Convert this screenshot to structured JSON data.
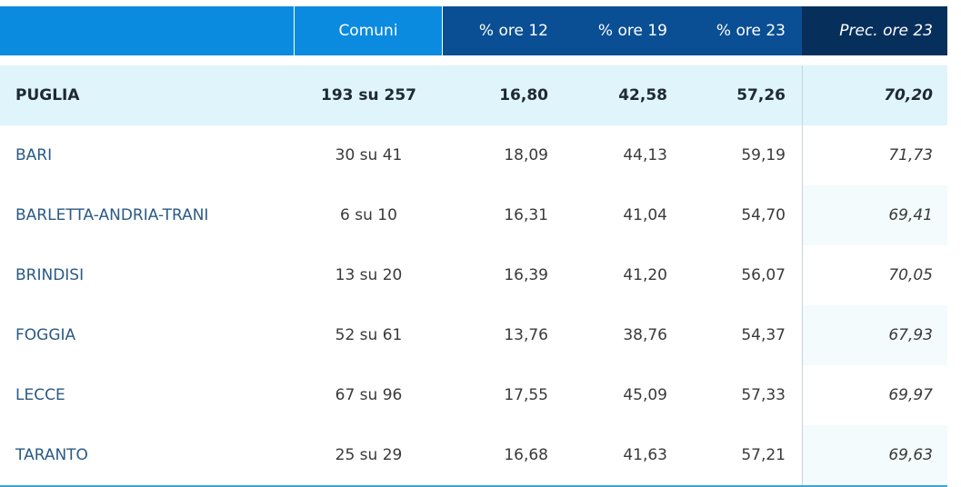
{
  "headers": {
    "blank": "",
    "comuni": "Comuni",
    "p12": "% ore 12",
    "p19": "% ore 19",
    "p23": "% ore 23",
    "prec": "Prec. ore 23"
  },
  "colors": {
    "header_light": "#0a8be0",
    "header_mid": "#0a4f94",
    "header_dark": "#072f5c",
    "total_row_bg": "#dff4fb",
    "province_text": "#2a5a86"
  },
  "total": {
    "name": "PUGLIA",
    "comuni": "193 su 257",
    "p12": "16,80",
    "p19": "42,58",
    "p23": "57,26",
    "prec": "70,20"
  },
  "rows": [
    {
      "name": "BARI",
      "comuni": "30 su 41",
      "p12": "18,09",
      "p19": "44,13",
      "p23": "59,19",
      "prec": "71,73"
    },
    {
      "name": "BARLETTA-ANDRIA-TRANI",
      "comuni": "6 su 10",
      "p12": "16,31",
      "p19": "41,04",
      "p23": "54,70",
      "prec": "69,41"
    },
    {
      "name": "BRINDISI",
      "comuni": "13 su 20",
      "p12": "16,39",
      "p19": "41,20",
      "p23": "56,07",
      "prec": "70,05"
    },
    {
      "name": "FOGGIA",
      "comuni": "52 su 61",
      "p12": "13,76",
      "p19": "38,76",
      "p23": "54,37",
      "prec": "67,93"
    },
    {
      "name": "LECCE",
      "comuni": "67 su 96",
      "p12": "17,55",
      "p19": "45,09",
      "p23": "57,33",
      "prec": "69,97"
    },
    {
      "name": "TARANTO",
      "comuni": "25 su 29",
      "p12": "16,68",
      "p19": "41,63",
      "p23": "57,21",
      "prec": "69,63"
    }
  ]
}
